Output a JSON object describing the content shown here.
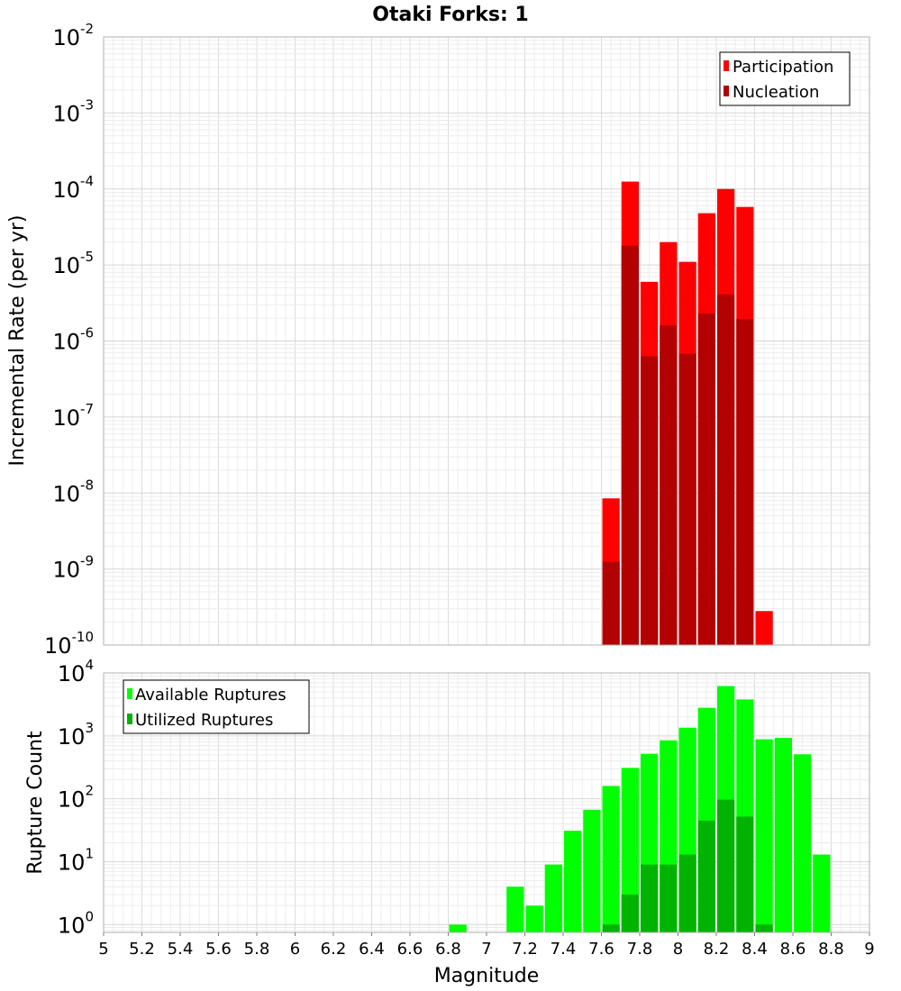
{
  "chart_data": [
    {
      "type": "bar",
      "title": "Otaki Forks: 1",
      "ylabel": "Incremental Rate (per yr)",
      "xlabel": "",
      "yscale": "log",
      "ylim": [
        1e-10,
        0.01
      ],
      "xlim": [
        5,
        9
      ],
      "grid": true,
      "legend_position": "top-right",
      "legend": [
        "Participation",
        "Nucleation"
      ],
      "colors": {
        "Participation": "#ff0000",
        "Nucleation": "#b30000"
      },
      "ytick_labels": [
        {
          "base": "10",
          "exp": "-2"
        },
        {
          "base": "10",
          "exp": "-3"
        },
        {
          "base": "10",
          "exp": "-4"
        },
        {
          "base": "10",
          "exp": "-5"
        },
        {
          "base": "10",
          "exp": "-6"
        },
        {
          "base": "10",
          "exp": "-7"
        },
        {
          "base": "10",
          "exp": "-8"
        },
        {
          "base": "10",
          "exp": "-9"
        },
        {
          "base": "10",
          "exp": "-10"
        }
      ],
      "x": [
        7.65,
        7.75,
        7.85,
        7.95,
        8.05,
        8.15,
        8.25,
        8.35,
        8.45
      ],
      "series": [
        {
          "name": "Participation",
          "values": [
            8.5e-09,
            0.000125,
            6e-06,
            2e-05,
            1.1e-05,
            4.8e-05,
            0.0001,
            5.8e-05,
            2.8e-10
          ]
        },
        {
          "name": "Nucleation",
          "values": [
            1.25e-09,
            1.8e-05,
            6.3e-07,
            1.6e-06,
            6.8e-07,
            2.3e-06,
            4.1e-06,
            1.95e-06,
            null
          ]
        }
      ]
    },
    {
      "type": "bar",
      "title": "",
      "ylabel": "Rupture Count",
      "xlabel": "Magnitude",
      "yscale": "log",
      "ylim": [
        0.75,
        10000
      ],
      "xlim": [
        5,
        9
      ],
      "grid": true,
      "legend_position": "top-left",
      "legend": [
        "Available Ruptures",
        "Utilized Ruptures"
      ],
      "colors": {
        "Available Ruptures": "#00ff00",
        "Utilized Ruptures": "#00b300"
      },
      "ytick_labels": [
        {
          "base": "10",
          "exp": "4"
        },
        {
          "base": "10",
          "exp": "3"
        },
        {
          "base": "10",
          "exp": "2"
        },
        {
          "base": "10",
          "exp": "1"
        },
        {
          "base": "10",
          "exp": "0"
        }
      ],
      "x_tick_labels": [
        "5",
        "5.2",
        "5.4",
        "5.6",
        "5.8",
        "6",
        "6.2",
        "6.4",
        "6.6",
        "6.8",
        "7",
        "7.2",
        "7.4",
        "7.6",
        "7.8",
        "8",
        "8.2",
        "8.4",
        "8.6",
        "8.8",
        "9"
      ],
      "x": [
        6.85,
        7.15,
        7.25,
        7.35,
        7.45,
        7.55,
        7.65,
        7.75,
        7.85,
        7.95,
        8.05,
        8.15,
        8.25,
        8.35,
        8.45,
        8.55,
        8.65,
        8.75
      ],
      "series": [
        {
          "name": "Available Ruptures",
          "values": [
            1,
            4,
            2,
            9,
            31,
            67,
            160,
            310,
            520,
            850,
            1350,
            2800,
            6200,
            3800,
            880,
            930,
            510,
            13
          ]
        },
        {
          "name": "Utilized Ruptures",
          "values": [
            null,
            null,
            null,
            null,
            null,
            null,
            1,
            3,
            9,
            9,
            13,
            45,
            97,
            52,
            1,
            null,
            null,
            null
          ]
        }
      ]
    }
  ]
}
